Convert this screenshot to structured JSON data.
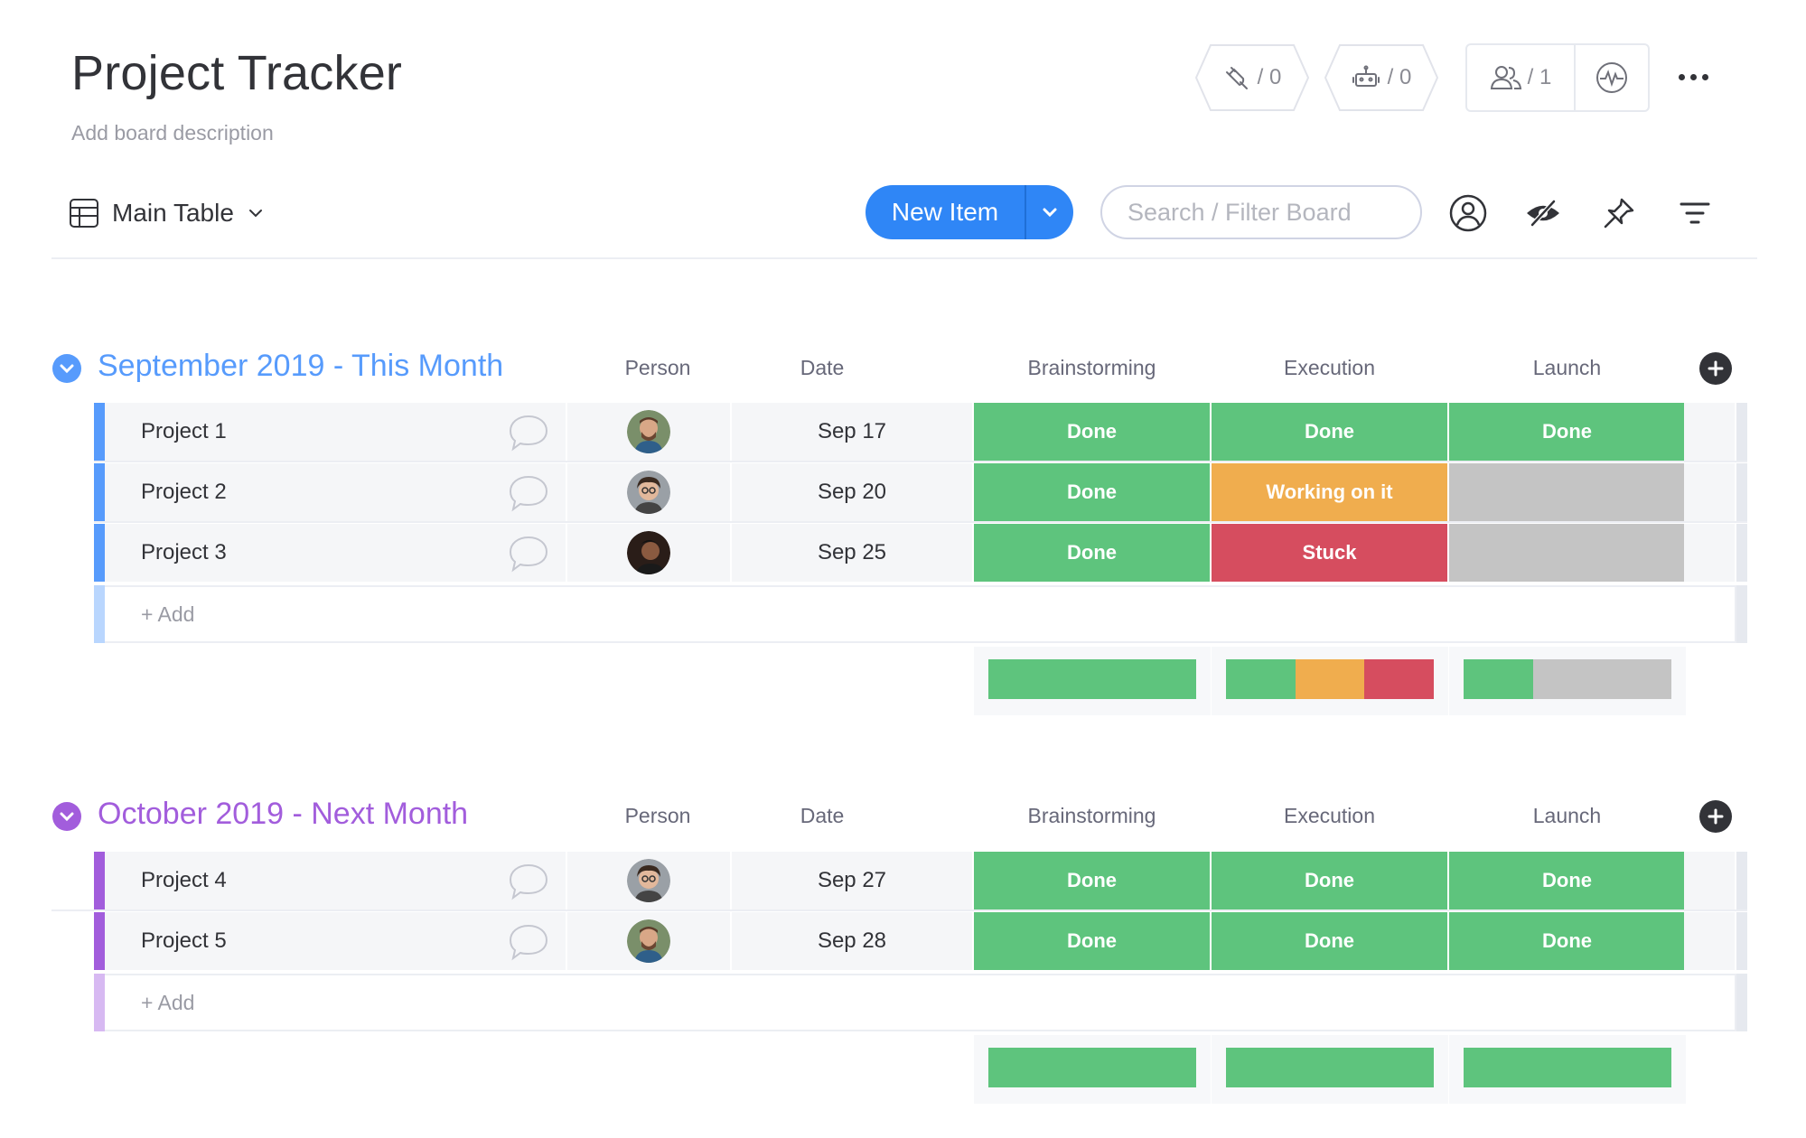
{
  "board": {
    "title": "Project Tracker",
    "description": "Add board description"
  },
  "header": {
    "integrations_count": "/ 0",
    "automations_count": "/ 0",
    "members_count": "/ 1"
  },
  "toolbar": {
    "view_label": "Main Table",
    "new_item_label": "New Item",
    "search_placeholder": "Search / Filter Board"
  },
  "colors": {
    "done": "#5ec47d",
    "working": "#f0ad4e",
    "stuck": "#d64d5f",
    "empty": "#c4c4c4",
    "group1": "#579bfc",
    "group1_light": "#b9d6fe",
    "group2": "#a25ddc",
    "group2_light": "#d7b9f2",
    "primary": "#2f86f6"
  },
  "columns": [
    "Person",
    "Date",
    "Brainstorming",
    "Execution",
    "Launch"
  ],
  "groups": [
    {
      "title": "September 2019 - This Month",
      "color": "#579bfc",
      "add_label": "+ Add",
      "rows": [
        {
          "name": "Project 1",
          "date": "Sep 17",
          "avatar": "avatar-a",
          "statuses": [
            "Done",
            "Done",
            "Done"
          ]
        },
        {
          "name": "Project 2",
          "date": "Sep 20",
          "avatar": "avatar-b",
          "statuses": [
            "Done",
            "Working on it",
            ""
          ]
        },
        {
          "name": "Project 3",
          "date": "Sep 25",
          "avatar": "avatar-c",
          "statuses": [
            "Done",
            "Stuck",
            ""
          ]
        }
      ],
      "summary": [
        {
          "done": 1.0,
          "working": 0,
          "stuck": 0,
          "empty": 0
        },
        {
          "done": 0.333,
          "working": 0.333,
          "stuck": 0.334,
          "empty": 0
        },
        {
          "done": 0.333,
          "working": 0,
          "stuck": 0,
          "empty": 0.667
        }
      ]
    },
    {
      "title": "October 2019 - Next Month",
      "color": "#a25ddc",
      "add_label": "+ Add",
      "rows": [
        {
          "name": "Project 4",
          "date": "Sep 27",
          "avatar": "avatar-b",
          "statuses": [
            "Done",
            "Done",
            "Done"
          ]
        },
        {
          "name": "Project 5",
          "date": "Sep 28",
          "avatar": "avatar-a",
          "statuses": [
            "Done",
            "Done",
            "Done"
          ]
        }
      ],
      "summary": [
        {
          "done": 1.0,
          "working": 0,
          "stuck": 0,
          "empty": 0
        },
        {
          "done": 1.0,
          "working": 0,
          "stuck": 0,
          "empty": 0
        },
        {
          "done": 1.0,
          "working": 0,
          "stuck": 0,
          "empty": 0
        }
      ]
    }
  ]
}
